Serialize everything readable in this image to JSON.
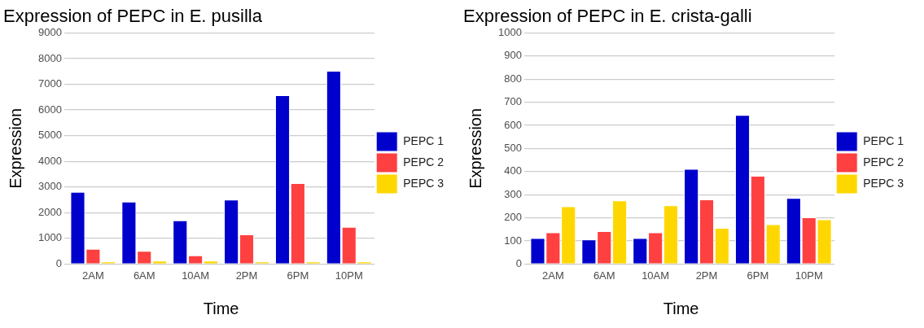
{
  "chart_data": [
    {
      "type": "bar",
      "title": "Expression of PEPC in E. pusilla",
      "xlabel": "Time",
      "ylabel": "Expression",
      "categories": [
        "2AM",
        "6AM",
        "10AM",
        "2PM",
        "6PM",
        "10PM"
      ],
      "series": [
        {
          "name": "PEPC 1",
          "color": "#0000cd",
          "values": [
            2810,
            2430,
            1700,
            2510,
            6570,
            7520
          ]
        },
        {
          "name": "PEPC 2",
          "color": "#ff4040",
          "values": [
            590,
            510,
            340,
            1150,
            3150,
            1450
          ]
        },
        {
          "name": "PEPC 3",
          "color": "#ffd700",
          "values": [
            100,
            130,
            130,
            100,
            100,
            100
          ]
        }
      ],
      "ylim": [
        0,
        9000
      ],
      "yticks": [
        0,
        1000,
        2000,
        3000,
        4000,
        5000,
        6000,
        7000,
        8000,
        9000
      ],
      "grid": "y",
      "legend": "right"
    },
    {
      "type": "bar",
      "title": "Expression of PEPC in E. crista-galli",
      "xlabel": "Time",
      "ylabel": "Expression",
      "categories": [
        "2AM",
        "6AM",
        "10AM",
        "2PM",
        "6PM",
        "10PM"
      ],
      "series": [
        {
          "name": "PEPC 1",
          "color": "#0000cd",
          "values": [
            112,
            106,
            112,
            412,
            645,
            286
          ]
        },
        {
          "name": "PEPC 2",
          "color": "#ff4040",
          "values": [
            137,
            142,
            137,
            280,
            382,
            202
          ]
        },
        {
          "name": "PEPC 3",
          "color": "#ffd700",
          "values": [
            250,
            275,
            254,
            156,
            172,
            193
          ]
        }
      ],
      "ylim": [
        0,
        1000
      ],
      "yticks": [
        0,
        100,
        200,
        300,
        400,
        500,
        600,
        700,
        800,
        900,
        1000
      ],
      "grid": "y",
      "legend": "right"
    }
  ]
}
